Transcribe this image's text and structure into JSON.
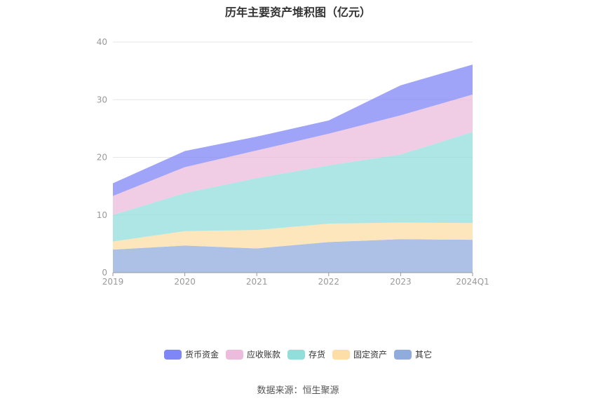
{
  "title": "历年主要资产堆积图（亿元）",
  "source": "数据来源：恒生聚源",
  "chart_data": {
    "type": "area",
    "stacked": true,
    "title": "历年主要资产堆积图（亿元）",
    "categories": [
      "2019",
      "2020",
      "2021",
      "2022",
      "2023",
      "2024Q1"
    ],
    "ylim": [
      0,
      40
    ],
    "yticks": [
      0,
      10,
      20,
      30,
      40
    ],
    "grid": true,
    "legend_position": "bottom",
    "series": [
      {
        "name": "其它",
        "color": "#90acdc",
        "values": [
          4.0,
          4.7,
          4.2,
          5.3,
          5.8,
          5.7
        ]
      },
      {
        "name": "固定资产",
        "color": "#fddea6",
        "values": [
          1.4,
          2.5,
          3.2,
          3.2,
          2.9,
          2.9
        ]
      },
      {
        "name": "存货",
        "color": "#91dedb",
        "values": [
          4.6,
          6.6,
          9.0,
          10.1,
          11.8,
          15.8
        ]
      },
      {
        "name": "应收账款",
        "color": "#ecbcdc",
        "values": [
          3.3,
          4.5,
          4.8,
          5.5,
          6.8,
          6.5
        ]
      },
      {
        "name": "货币资金",
        "color": "#7f86f5",
        "values": [
          2.2,
          2.8,
          2.4,
          2.3,
          5.2,
          5.2
        ]
      }
    ]
  }
}
